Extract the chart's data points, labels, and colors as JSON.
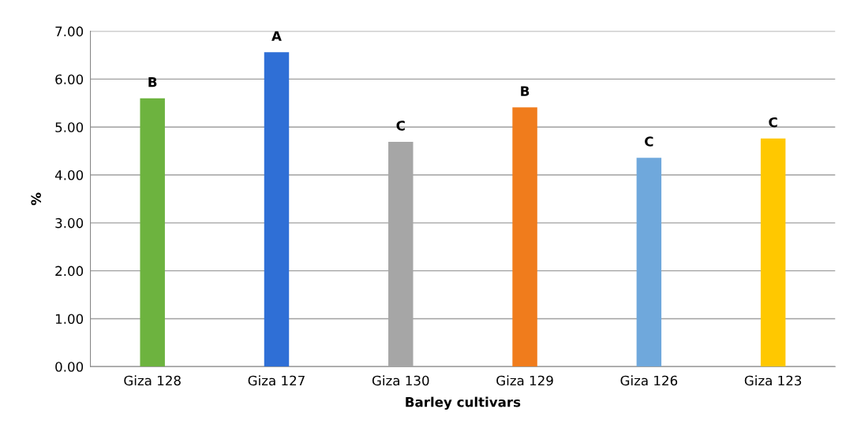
{
  "chart_data": {
    "type": "bar",
    "xlabel": "Barley cultivars",
    "ylabel": "%",
    "categories": [
      "Giza 128",
      "Giza 127",
      "Giza 130",
      "Giza 129",
      "Giza 126",
      "Giza 123"
    ],
    "values": [
      5.6,
      6.56,
      4.69,
      5.41,
      4.36,
      4.76
    ],
    "colors": [
      "#6db33f",
      "#2f6fd6",
      "#a6a6a6",
      "#f07c1c",
      "#6fa8dc",
      "#ffc800"
    ],
    "ylim": [
      0,
      7
    ],
    "yticks": [
      {
        "value": 0,
        "label": "0.00"
      },
      {
        "value": 1,
        "label": "1.00"
      },
      {
        "value": 2,
        "label": "2.00"
      },
      {
        "value": 3,
        "label": "3.00"
      },
      {
        "value": 4,
        "label": "4.00"
      },
      {
        "value": 5,
        "label": "5.00"
      },
      {
        "value": 6,
        "label": "6.00"
      },
      {
        "value": 7,
        "label": "7.00"
      }
    ],
    "grid": "y",
    "annotations": [
      {
        "text": "B",
        "x": "Giza 128",
        "y": 5.6
      },
      {
        "text": "A",
        "x": "Giza 127",
        "y": 6.56
      },
      {
        "text": "C",
        "x": "Giza 130",
        "y": 4.69
      },
      {
        "text": "B",
        "x": "Giza 129",
        "y": 5.41
      },
      {
        "text": "C",
        "x": "Giza 126",
        "y": 4.36
      },
      {
        "text": "C",
        "x": "Giza 123",
        "y": 4.76
      }
    ]
  }
}
